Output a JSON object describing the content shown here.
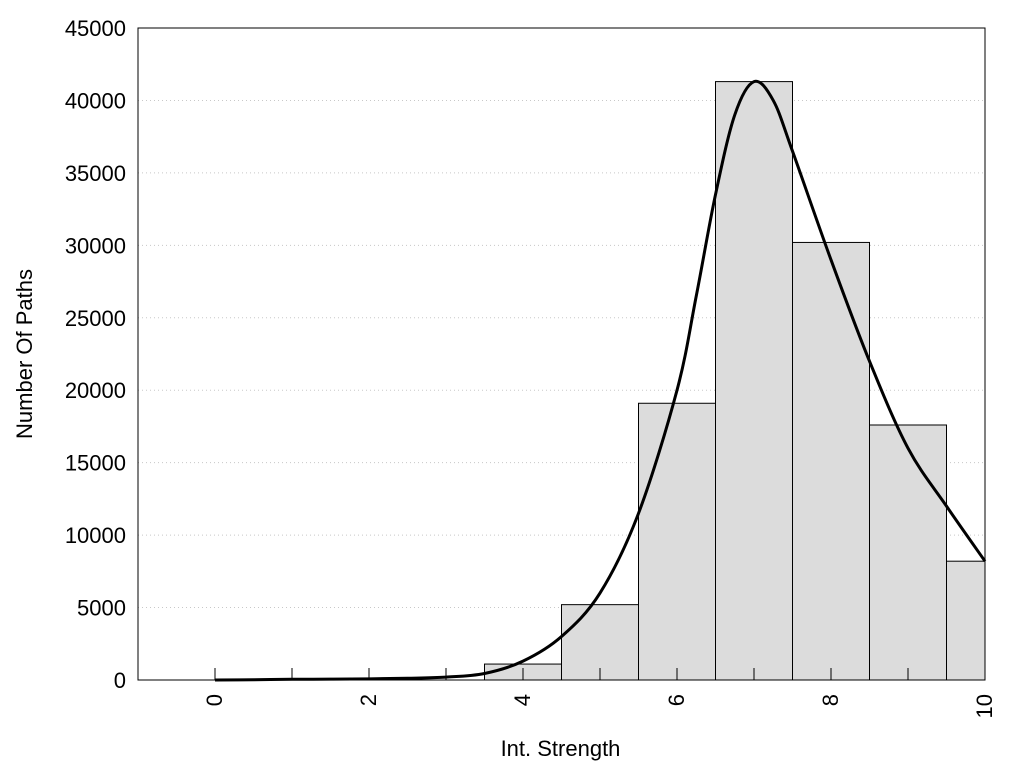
{
  "chart_data": {
    "type": "bar",
    "title": "",
    "xlabel": "Int. Strength",
    "ylabel": "Number Of Paths",
    "xlim": [
      -1,
      10
    ],
    "ylim": [
      0,
      45000
    ],
    "x_ticks": [
      "0",
      "2",
      "4",
      "6",
      "8",
      "10"
    ],
    "y_ticks": [
      "0",
      "5000",
      "10000",
      "15000",
      "20000",
      "25000",
      "30000",
      "35000",
      "40000",
      "45000"
    ],
    "grid": "horizontal dotted",
    "bars": [
      {
        "center": 0,
        "value": 0
      },
      {
        "center": 1,
        "value": 0
      },
      {
        "center": 2,
        "value": 0
      },
      {
        "center": 3,
        "value": 0
      },
      {
        "center": 4,
        "value": 1100
      },
      {
        "center": 5,
        "value": 5200
      },
      {
        "center": 6,
        "value": 19100
      },
      {
        "center": 7,
        "value": 41300
      },
      {
        "center": 8,
        "value": 30200
      },
      {
        "center": 9,
        "value": 17600
      },
      {
        "center": 10,
        "value": 8200
      }
    ],
    "curve": {
      "x": [
        0,
        0.5,
        1,
        1.5,
        2,
        2.5,
        3,
        3.5,
        4,
        4.5,
        5,
        5.5,
        6,
        6.25,
        6.5,
        6.75,
        7,
        7.25,
        7.5,
        8,
        8.5,
        9,
        9.5,
        10
      ],
      "y": [
        0,
        20,
        50,
        60,
        80,
        120,
        200,
        450,
        1300,
        3000,
        6000,
        11500,
        20000,
        26500,
        33500,
        39000,
        41300,
        40000,
        36500,
        29000,
        22000,
        16000,
        12000,
        8200
      ]
    },
    "bar_color": "#dcdcdc",
    "bar_edge_color": "#000000",
    "curve_color": "#000000"
  }
}
